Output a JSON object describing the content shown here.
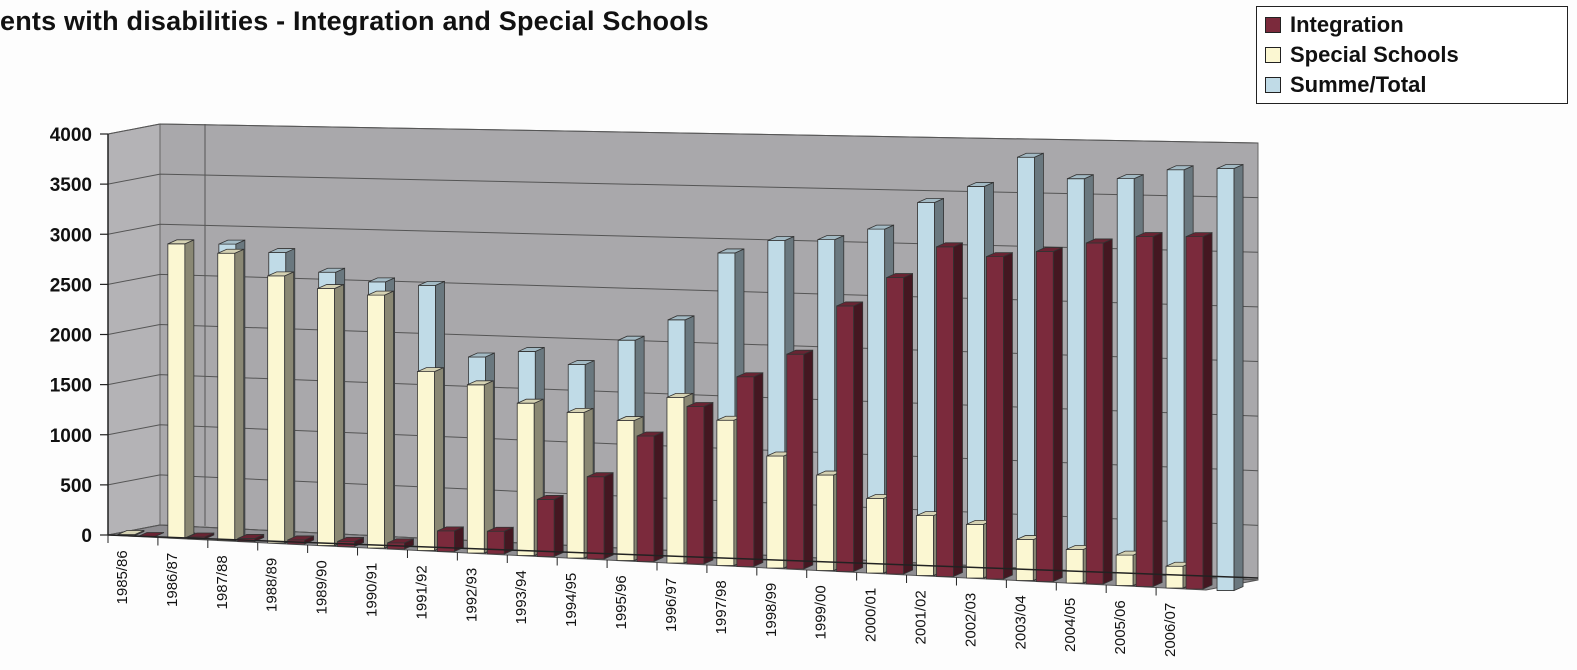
{
  "chart_data": {
    "type": "bar",
    "title": "ents with disabilities - Integration and Special Schools",
    "categories": [
      "1985/86",
      "1986/87",
      "1987/88",
      "1988/89",
      "1989/90",
      "1990/91",
      "1991/92",
      "1992/93",
      "1993/94",
      "1994/95",
      "1995/96",
      "1996/97",
      "1997/98",
      "1998/99",
      "1999/00",
      "2000/01",
      "2001/02",
      "2002/03",
      "2003/04",
      "2004/05",
      "2005/06",
      "2006/07"
    ],
    "series": [
      {
        "name": "Integration",
        "color": "#7b2a3c",
        "values": [
          0,
          20,
          30,
          40,
          50,
          60,
          200,
          220,
          550,
          790,
          1200,
          1500,
          1800,
          2030,
          2500,
          2780,
          3080,
          3000,
          3060,
          3150,
          3220,
          3230
        ]
      },
      {
        "name": "Special Schools",
        "color": "#fbf7d2",
        "values": [
          10,
          2920,
          2840,
          2630,
          2520,
          2470,
          1740,
          1630,
          1470,
          1400,
          1340,
          1580,
          1380,
          1060,
          900,
          700,
          560,
          500,
          380,
          310,
          280,
          200
        ]
      },
      {
        "name": "Summe/Total",
        "color": "#c0dbe7",
        "values": [
          10,
          2930,
          2860,
          2680,
          2600,
          2580,
          1900,
          1970,
          1860,
          2110,
          2320,
          2970,
          3100,
          3120,
          3230,
          3490,
          3650,
          3930,
          3740,
          3750,
          3840,
          3860
        ]
      }
    ],
    "ylim": [
      0,
      4000
    ],
    "yticks": [
      0,
      500,
      1000,
      1500,
      2000,
      2500,
      3000,
      3500,
      4000
    ],
    "legend_position": "top-right",
    "grid": true,
    "style": "3d-clustered-column"
  }
}
